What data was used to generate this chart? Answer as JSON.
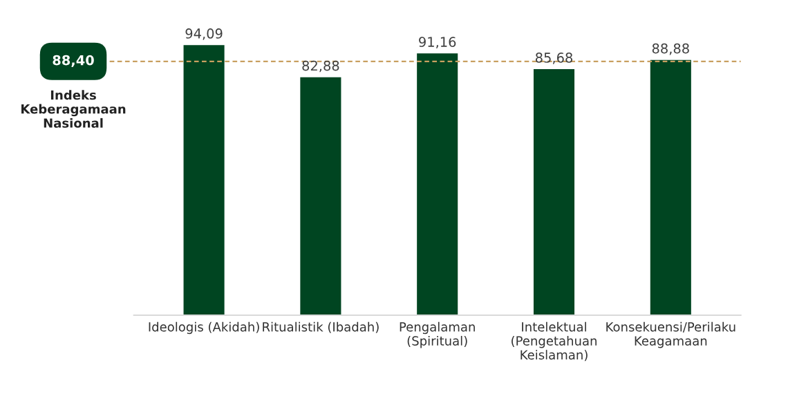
{
  "chart_data": {
    "type": "bar",
    "categories": [
      "Ideologis (Akidah)",
      "Ritualistik (Ibadah)",
      "Pengalaman\n(Spiritual)",
      "Intelektual\n(Pengetahuan\nKeislaman)",
      "Konsekuensi/Perilaku\nKeagamaan"
    ],
    "values": [
      94.09,
      82.88,
      91.16,
      85.68,
      88.88
    ],
    "value_labels": [
      "94,09",
      "82,88",
      "91,16",
      "85,68",
      "88,88"
    ],
    "color": "#004521",
    "ref_lines": [
      {
        "axis": "y",
        "value": 88.4,
        "label": "88,40",
        "color": "#c8a060",
        "line_style": "dashed"
      }
    ],
    "annotations": [
      "Indeks\nKeberagamaan\nNasional"
    ],
    "grid": false,
    "legend": false,
    "tick_labels": "x"
  }
}
